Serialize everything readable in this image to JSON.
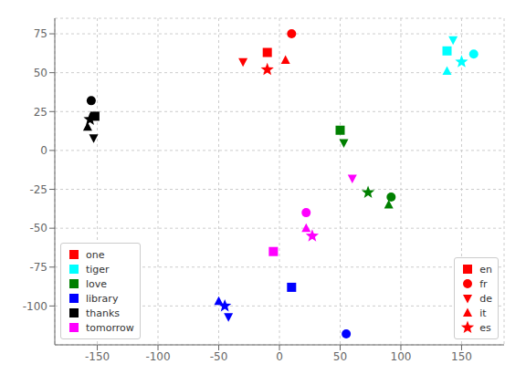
{
  "chart_data": {
    "type": "scatter",
    "xlim": [
      -185,
      185
    ],
    "ylim": [
      -125,
      85
    ],
    "xticks": [
      -150,
      -100,
      -50,
      0,
      50,
      100,
      150
    ],
    "yticks": [
      -100,
      -75,
      -50,
      -25,
      0,
      25,
      50,
      75
    ],
    "grid": true,
    "legend": "lower left",
    "series": [
      {
        "name": "one",
        "color": "red",
        "x": [
          -10,
          10,
          -30,
          5,
          -10
        ],
        "y": [
          63,
          75,
          57,
          58,
          52
        ]
      },
      {
        "name": "tiger",
        "color": "cyan",
        "x": [
          138,
          160,
          143,
          138,
          150
        ],
        "y": [
          64,
          62,
          71,
          51,
          57
        ]
      },
      {
        "name": "love",
        "color": "green",
        "x": [
          50,
          92,
          53,
          90,
          73
        ],
        "y": [
          13,
          -30,
          5,
          -35,
          -27
        ]
      },
      {
        "name": "library",
        "color": "blue",
        "x": [
          10,
          55,
          -42,
          -50,
          -45
        ],
        "y": [
          -88,
          -118,
          -107,
          -97,
          -100
        ]
      },
      {
        "name": "thanks",
        "color": "black",
        "x": [
          -152,
          -155,
          -153,
          -158,
          -156
        ],
        "y": [
          22,
          32,
          8,
          15,
          20
        ]
      },
      {
        "name": "tomorrow",
        "color": "magenta",
        "x": [
          -5,
          22,
          60,
          22,
          27
        ],
        "y": [
          -65,
          -40,
          -18,
          -50,
          -55
        ]
      }
    ],
    "marker_legend": {
      "legend": "lower right",
      "color": "red",
      "items": [
        {
          "name": "en",
          "marker": "square"
        },
        {
          "name": "fr",
          "marker": "circle"
        },
        {
          "name": "de",
          "marker": "triangle_down"
        },
        {
          "name": "it",
          "marker": "triangle_up"
        },
        {
          "name": "es",
          "marker": "star"
        }
      ]
    }
  }
}
